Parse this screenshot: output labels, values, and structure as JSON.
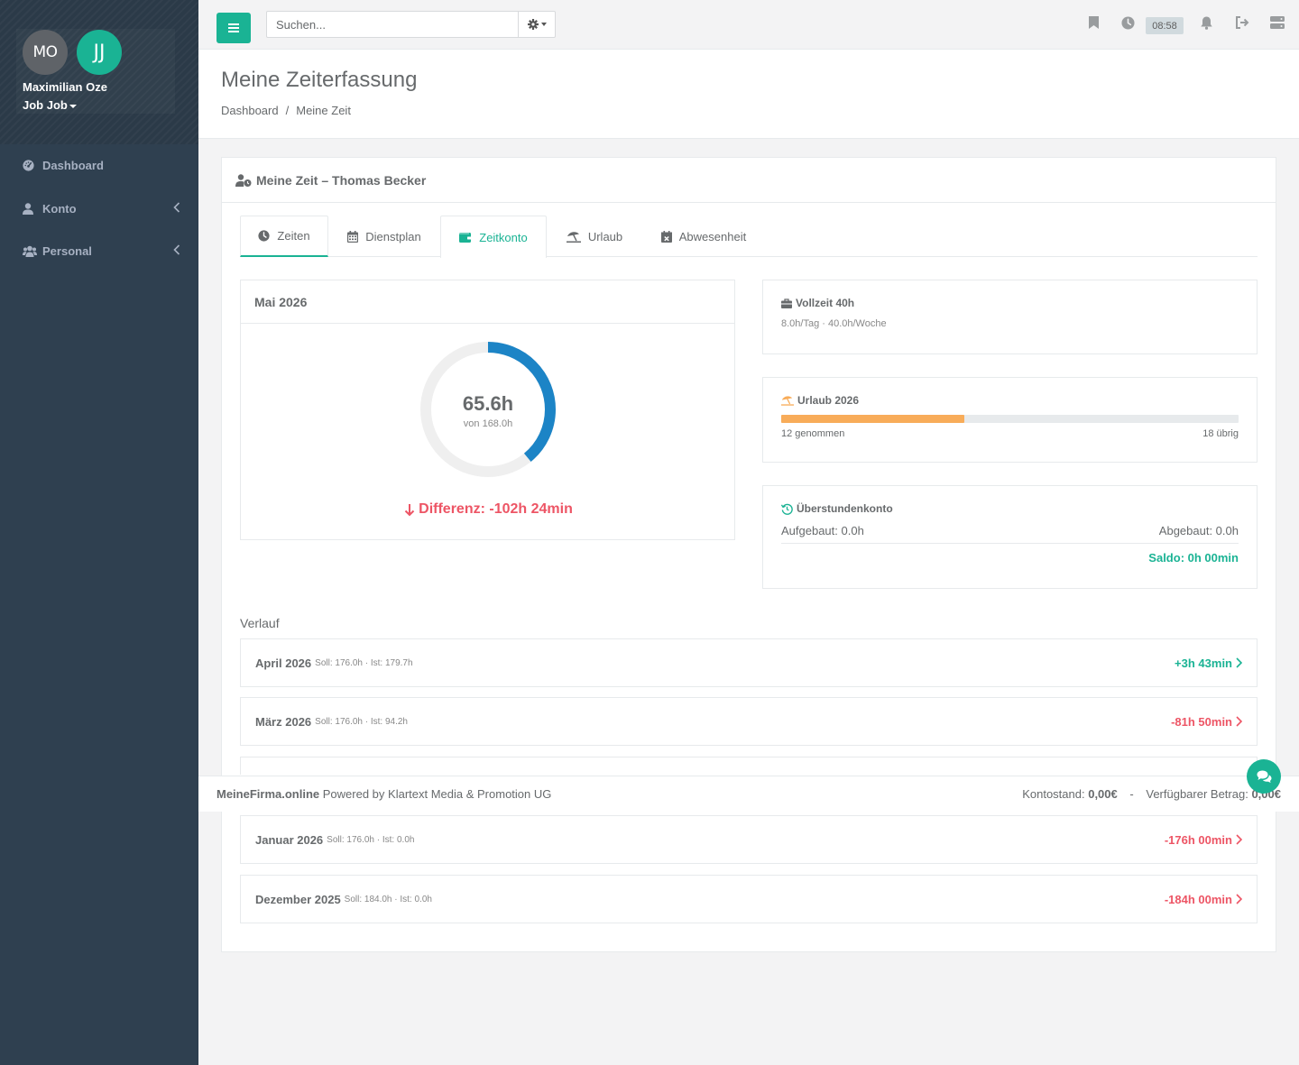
{
  "sidebar": {
    "avatars": [
      {
        "initials": "MO",
        "color": "#5f6368"
      },
      {
        "initials": "JJ",
        "color": "#1ab394"
      }
    ],
    "user_name": "Maximilian Oze",
    "user_role": "Job Job",
    "items": [
      {
        "label": "Dashboard",
        "icon": "tachometer-icon"
      },
      {
        "label": "Konto",
        "icon": "user-icon"
      },
      {
        "label": "Personal",
        "icon": "users-icon"
      }
    ]
  },
  "topbar": {
    "search_placeholder": "Suchen...",
    "clock_time": "08:58",
    "accent": "#1ab394"
  },
  "page": {
    "title": "Meine Zeiterfassung",
    "breadcrumb": [
      "Dashboard",
      "Meine Zeit"
    ],
    "breadcrumb_sep": "/"
  },
  "panel": {
    "title": "Meine Zeit – Thomas Becker",
    "tabs": [
      {
        "label": "Zeiten",
        "icon": "clock-icon"
      },
      {
        "label": "Dienstplan",
        "icon": "calendar-icon"
      },
      {
        "label": "Zeitkonto",
        "icon": "wallet-icon",
        "active": true
      },
      {
        "label": "Urlaub",
        "icon": "umbrella-beach-icon"
      },
      {
        "label": "Abwesenheit",
        "icon": "calendar-x-icon"
      }
    ]
  },
  "month": {
    "title": "Mai 2026",
    "ist_label": "65.6h",
    "soll_label": "von 168.0h",
    "ist": 65.6,
    "soll": 168.0,
    "difference": "Differenz: -102h 24min",
    "ring_color": "#1c84c6",
    "track_color": "#efefef"
  },
  "contract": {
    "title": "Vollzeit 40h",
    "detail": "8.0h/Tag · 40.0h/Woche"
  },
  "vacation": {
    "title": "Urlaub 2026",
    "taken": 12,
    "total": 30,
    "taken_label": "12 genommen",
    "remaining_label": "18 übrig",
    "bar_color": "#f8ac59"
  },
  "overtime": {
    "title": "Überstundenkonto",
    "built": "Aufgebaut: 0.0h",
    "reduced": "Abgebaut: 0.0h",
    "saldo": "Saldo: 0h 00min"
  },
  "history": {
    "title": "Verlauf",
    "rows": [
      {
        "month": "April 2026",
        "meta": "Soll: 176.0h · Ist: 179.7h",
        "value": "+3h 43min",
        "positive": true
      },
      {
        "month": "März 2026",
        "meta": "Soll: 176.0h · Ist: 94.2h",
        "value": "-81h 50min",
        "positive": false
      },
      {
        "month": "Januar 2026",
        "meta": "Soll: 176.0h · Ist: 0.0h",
        "value": "-176h 00min",
        "positive": false
      },
      {
        "month": "Dezember 2025",
        "meta": "Soll: 184.0h · Ist: 0.0h",
        "value": "-184h 00min",
        "positive": false
      }
    ]
  },
  "footer": {
    "brand": "MeineFirma.online",
    "powered": "Powered by Klartext Media & Promotion UG",
    "balance_label": "Kontostand:",
    "balance_value": "0,00€",
    "separator": "-",
    "available_label": "Verfügbarer Betrag:",
    "available_value": "0,00€"
  }
}
